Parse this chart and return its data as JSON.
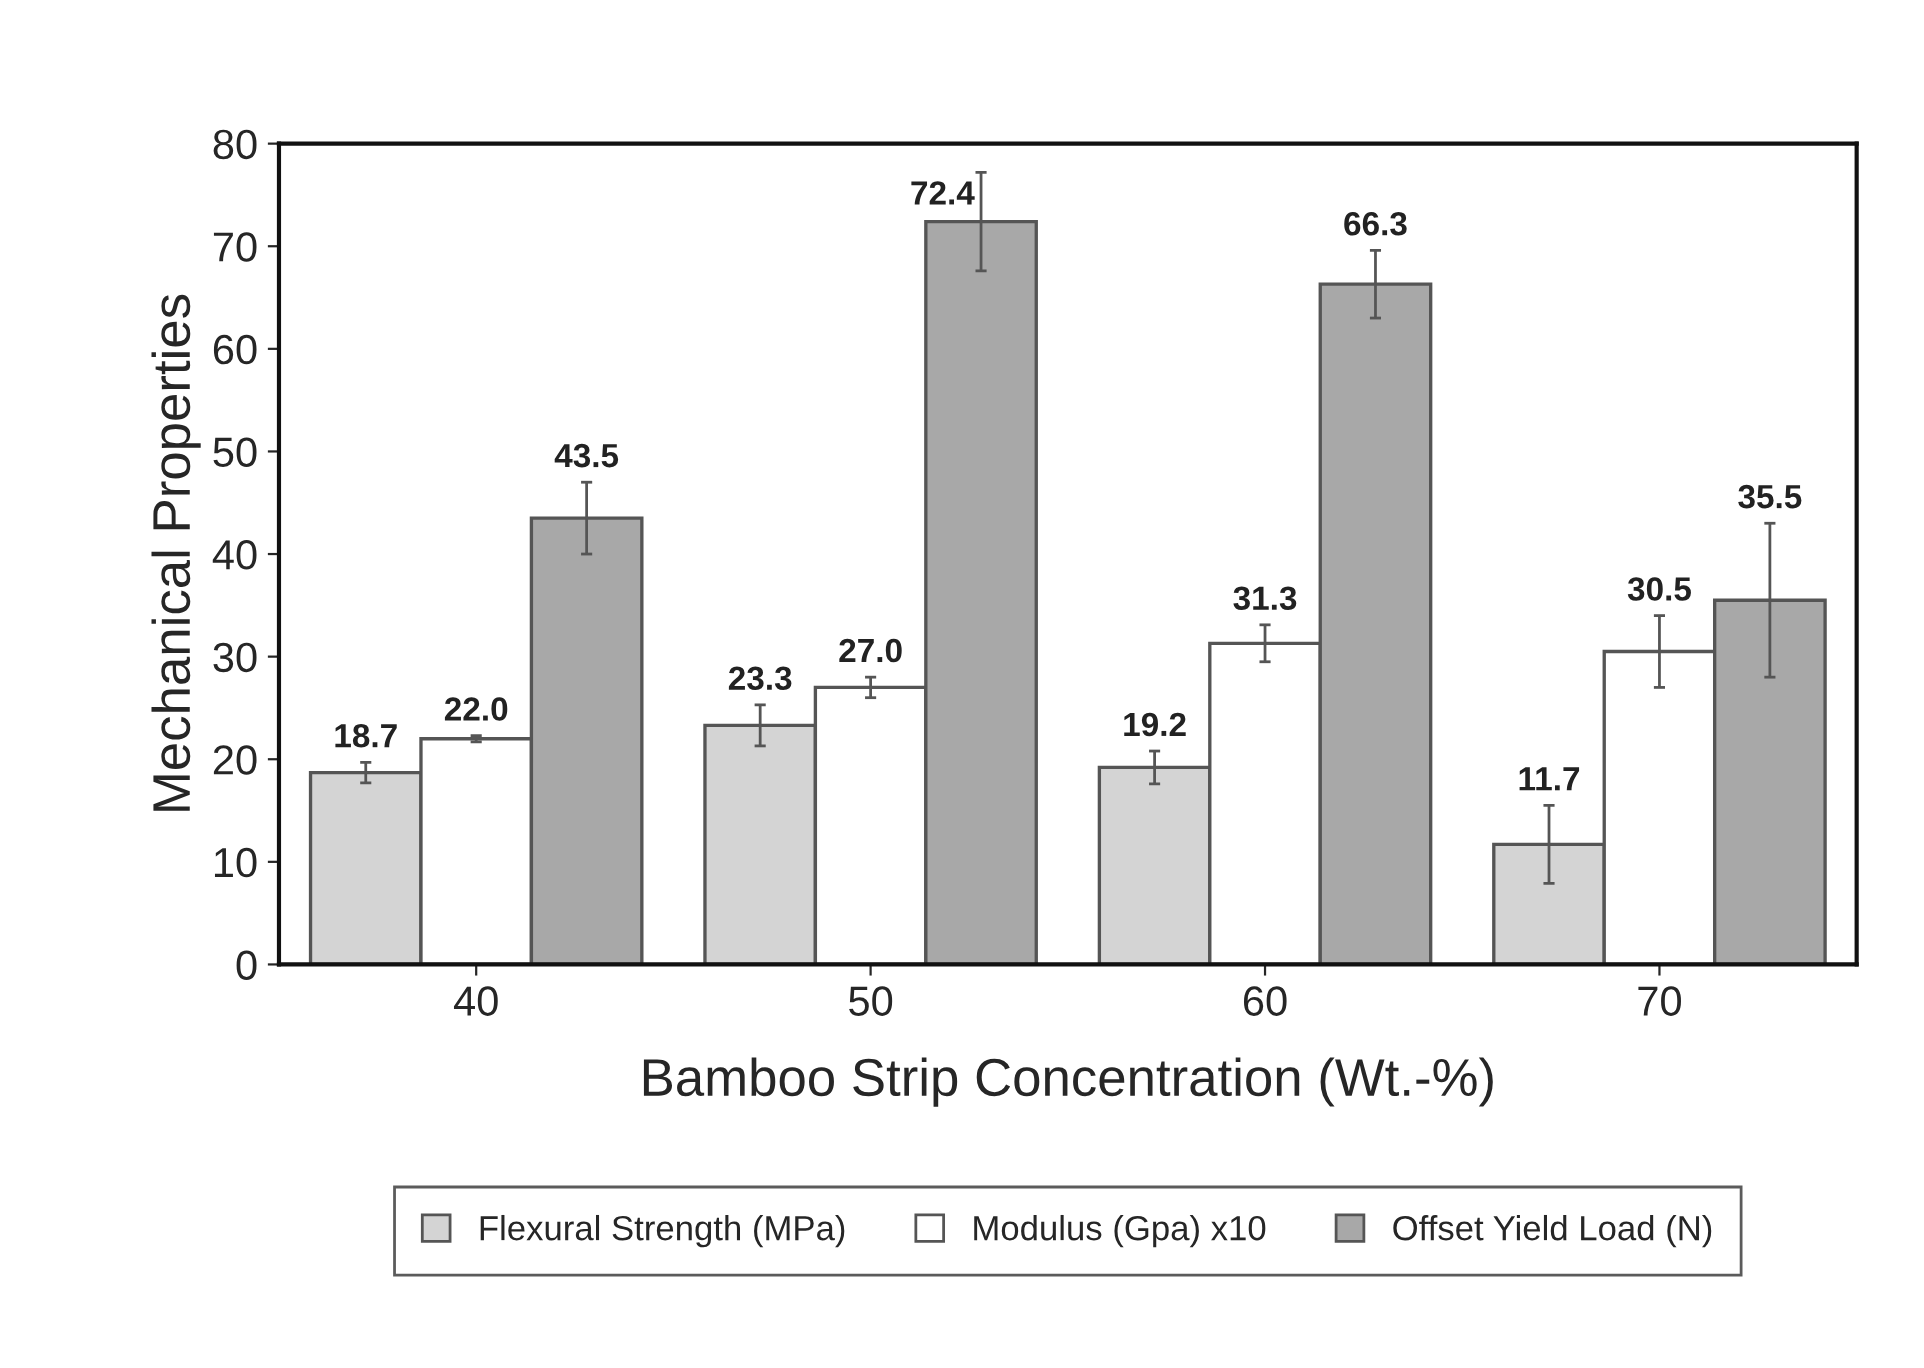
{
  "chart_data": {
    "type": "bar",
    "xlabel": "Bamboo Strip Concentration (Wt.-%)",
    "ylabel": "Mechanical Properties",
    "categories": [
      "40",
      "50",
      "60",
      "70"
    ],
    "series": [
      {
        "name": "Flexural Strength (MPa)",
        "color": "#d4d4d4",
        "values": [
          18.7,
          23.3,
          19.2,
          11.7
        ],
        "value_labels": [
          "18.7",
          "23.3",
          "19.2",
          "11.7"
        ],
        "errors": [
          1.0,
          2.0,
          1.6,
          3.8
        ]
      },
      {
        "name": "Modulus (Gpa) x10",
        "color": "#ffffff",
        "values": [
          22.0,
          27.0,
          31.3,
          30.5
        ],
        "value_labels": [
          "22.0",
          "27.0",
          "31.3",
          "30.5"
        ],
        "errors": [
          0.3,
          1.0,
          1.8,
          3.5
        ]
      },
      {
        "name": "Offset Yield Load (N)",
        "color": "#a8a8a8",
        "values": [
          43.5,
          72.4,
          66.3,
          35.5
        ],
        "value_labels": [
          "43.5",
          "72.4",
          "66.3",
          "35.5"
        ],
        "errors": [
          3.5,
          4.8,
          3.3,
          7.5
        ]
      }
    ],
    "ylim": [
      0,
      80
    ],
    "yticks": [
      0,
      10,
      20,
      30,
      40,
      50,
      60,
      70,
      80
    ],
    "legend": "bottom",
    "grid": false
  }
}
